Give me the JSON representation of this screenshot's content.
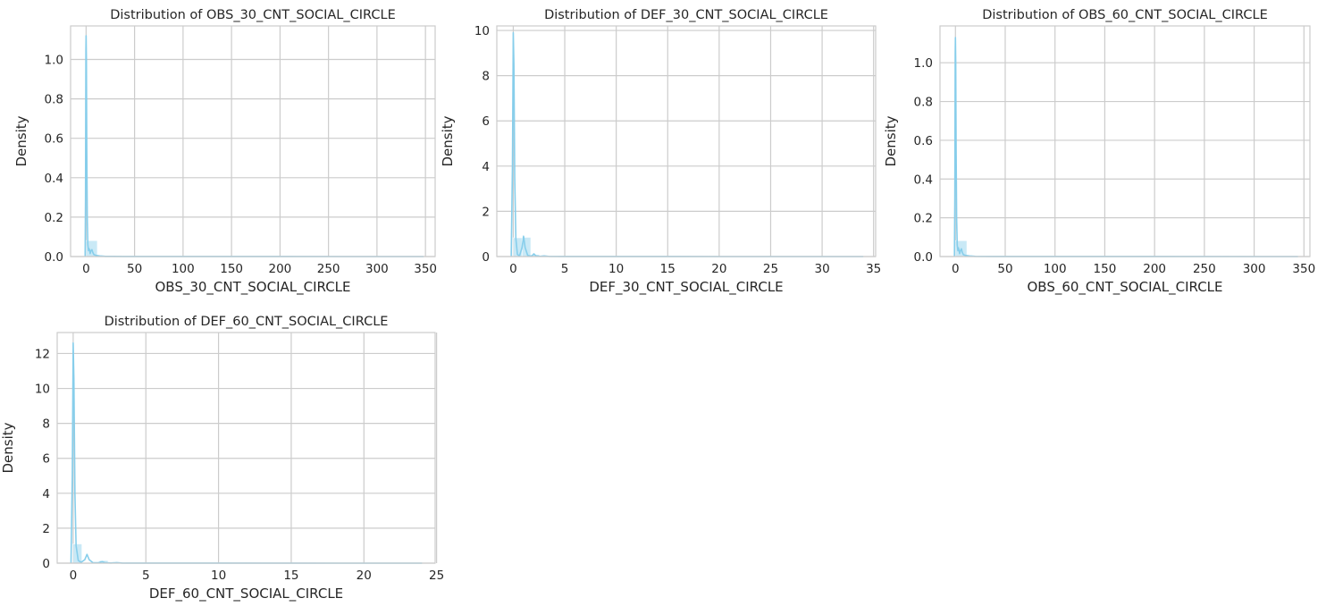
{
  "colors": {
    "accent": "#87ceeb",
    "grid": "#cccccc",
    "text": "#262626"
  },
  "chart_data": [
    {
      "type": "histogram",
      "title": "Distribution of OBS_30_CNT_SOCIAL_CIRCLE",
      "xlabel": "OBS_30_CNT_SOCIAL_CIRCLE",
      "ylabel": "Density",
      "xlim": [
        -16,
        360
      ],
      "ylim": [
        0,
        1.17
      ],
      "xticks": [
        0,
        50,
        100,
        150,
        200,
        250,
        300,
        350
      ],
      "yticks": [
        0.0,
        0.2,
        0.4,
        0.6,
        0.8,
        1.0
      ],
      "ytick_labels": [
        "0.0",
        "0.2",
        "0.4",
        "0.6",
        "0.8",
        "1.0"
      ],
      "grid": true,
      "bins": [
        {
          "x0": 0,
          "x1": 11.6,
          "density": 0.081
        },
        {
          "x0": 11.6,
          "x1": 23.2,
          "density": 0.002
        },
        {
          "x0": 23.2,
          "x1": 34.8,
          "density": 0.0003
        }
      ],
      "kde": [
        [
          -1,
          0.0
        ],
        [
          -0.6,
          0.3
        ],
        [
          -0.2,
          1.05
        ],
        [
          0,
          1.12
        ],
        [
          0.3,
          1.0
        ],
        [
          0.7,
          0.55
        ],
        [
          1.2,
          0.2
        ],
        [
          1.8,
          0.06
        ],
        [
          2.5,
          0.03
        ],
        [
          3.0,
          0.04
        ],
        [
          3.5,
          0.035
        ],
        [
          4.2,
          0.015
        ],
        [
          5,
          0.03
        ],
        [
          6,
          0.035
        ],
        [
          7,
          0.02
        ],
        [
          8,
          0.01
        ],
        [
          10,
          0.006
        ],
        [
          14,
          0.003
        ],
        [
          20,
          0.001
        ],
        [
          40,
          0.0005
        ],
        [
          100,
          0.0002
        ],
        [
          200,
          0.0001
        ],
        [
          348,
          0.0
        ]
      ]
    },
    {
      "type": "histogram",
      "title": "Distribution of DEF_30_CNT_SOCIAL_CIRCLE",
      "xlabel": "DEF_30_CNT_SOCIAL_CIRCLE",
      "ylabel": "Density",
      "xlim": [
        -1.6,
        35.2
      ],
      "ylim": [
        0,
        10.2
      ],
      "xticks": [
        0,
        5,
        10,
        15,
        20,
        25,
        30,
        35
      ],
      "yticks": [
        0,
        2,
        4,
        6,
        8,
        10
      ],
      "ytick_labels": [
        "0",
        "2",
        "4",
        "6",
        "8",
        "10"
      ],
      "grid": true,
      "bins": [
        {
          "x0": 0,
          "x1": 0.85,
          "density": 0.83
        },
        {
          "x0": 0.85,
          "x1": 1.7,
          "density": 0.85
        },
        {
          "x0": 1.7,
          "x1": 2.55,
          "density": 0.09
        },
        {
          "x0": 2.55,
          "x1": 3.4,
          "density": 0.02
        },
        {
          "x0": 3.4,
          "x1": 4.25,
          "density": 0.006
        }
      ],
      "kde": [
        [
          -0.2,
          0.0
        ],
        [
          -0.08,
          4.0
        ],
        [
          0,
          9.9
        ],
        [
          0.06,
          8.5
        ],
        [
          0.14,
          3.5
        ],
        [
          0.25,
          0.8
        ],
        [
          0.4,
          0.1
        ],
        [
          0.6,
          0.02
        ],
        [
          0.85,
          0.4
        ],
        [
          1.0,
          0.9
        ],
        [
          1.15,
          0.4
        ],
        [
          1.4,
          0.05
        ],
        [
          1.8,
          0.02
        ],
        [
          2.0,
          0.12
        ],
        [
          2.2,
          0.03
        ],
        [
          2.6,
          0.01
        ],
        [
          3.0,
          0.03
        ],
        [
          3.5,
          0.005
        ],
        [
          5,
          0.002
        ],
        [
          10,
          0.001
        ],
        [
          20,
          0.0005
        ],
        [
          34,
          0.0
        ]
      ]
    },
    {
      "type": "histogram",
      "title": "Distribution of OBS_60_CNT_SOCIAL_CIRCLE",
      "xlabel": "OBS_60_CNT_SOCIAL_CIRCLE",
      "ylabel": "Density",
      "xlim": [
        -15.5,
        356
      ],
      "ylim": [
        0,
        1.19
      ],
      "xticks": [
        0,
        50,
        100,
        150,
        200,
        250,
        300,
        350
      ],
      "yticks": [
        0.0,
        0.2,
        0.4,
        0.6,
        0.8,
        1.0
      ],
      "ytick_labels": [
        "0.0",
        "0.2",
        "0.4",
        "0.6",
        "0.8",
        "1.0"
      ],
      "grid": true,
      "bins": [
        {
          "x0": 0,
          "x1": 11.5,
          "density": 0.082
        },
        {
          "x0": 11.5,
          "x1": 23.0,
          "density": 0.002
        },
        {
          "x0": 23.0,
          "x1": 34.5,
          "density": 0.0003
        }
      ],
      "kde": [
        [
          -1,
          0.0
        ],
        [
          -0.6,
          0.3
        ],
        [
          -0.2,
          1.05
        ],
        [
          0,
          1.13
        ],
        [
          0.3,
          1.0
        ],
        [
          0.7,
          0.55
        ],
        [
          1.2,
          0.2
        ],
        [
          1.8,
          0.06
        ],
        [
          2.5,
          0.03
        ],
        [
          3.0,
          0.045
        ],
        [
          3.5,
          0.035
        ],
        [
          4.2,
          0.015
        ],
        [
          5,
          0.03
        ],
        [
          6,
          0.04
        ],
        [
          7,
          0.02
        ],
        [
          8,
          0.01
        ],
        [
          10,
          0.006
        ],
        [
          14,
          0.003
        ],
        [
          20,
          0.001
        ],
        [
          40,
          0.0005
        ],
        [
          100,
          0.0002
        ],
        [
          200,
          0.0001
        ],
        [
          344,
          0.0
        ]
      ]
    },
    {
      "type": "histogram",
      "title": "Distribution of DEF_60_CNT_SOCIAL_CIRCLE",
      "xlabel": "DEF_60_CNT_SOCIAL_CIRCLE",
      "ylabel": "Density",
      "xlim": [
        -1.1,
        24.9
      ],
      "ylim": [
        0,
        13.2
      ],
      "xticks": [
        0,
        5,
        10,
        15,
        20,
        25
      ],
      "yticks": [
        0,
        2,
        4,
        6,
        8,
        10,
        12
      ],
      "ytick_labels": [
        "0",
        "2",
        "4",
        "6",
        "8",
        "10",
        "12"
      ],
      "grid": true,
      "bins": [
        {
          "x0": 0,
          "x1": 0.6,
          "density": 1.1
        },
        {
          "x0": 0.6,
          "x1": 1.2,
          "density": 0.03
        },
        {
          "x0": 1.2,
          "x1": 1.8,
          "density": 0.02
        },
        {
          "x0": 1.8,
          "x1": 2.4,
          "density": 0.15
        },
        {
          "x0": 2.4,
          "x1": 3.0,
          "density": 0.01
        },
        {
          "x0": 3.0,
          "x1": 3.6,
          "density": 0.04
        }
      ],
      "kde": [
        [
          -0.15,
          0.0
        ],
        [
          -0.06,
          5.0
        ],
        [
          0,
          12.6
        ],
        [
          0.05,
          10.5
        ],
        [
          0.12,
          4.0
        ],
        [
          0.2,
          1.0
        ],
        [
          0.35,
          0.15
        ],
        [
          0.55,
          0.05
        ],
        [
          0.8,
          0.2
        ],
        [
          0.95,
          0.5
        ],
        [
          1.1,
          0.2
        ],
        [
          1.35,
          0.03
        ],
        [
          1.7,
          0.02
        ],
        [
          2.0,
          0.09
        ],
        [
          2.2,
          0.02
        ],
        [
          2.6,
          0.01
        ],
        [
          3.0,
          0.03
        ],
        [
          3.4,
          0.005
        ],
        [
          5,
          0.002
        ],
        [
          10,
          0.001
        ],
        [
          24,
          0.0
        ]
      ]
    }
  ]
}
